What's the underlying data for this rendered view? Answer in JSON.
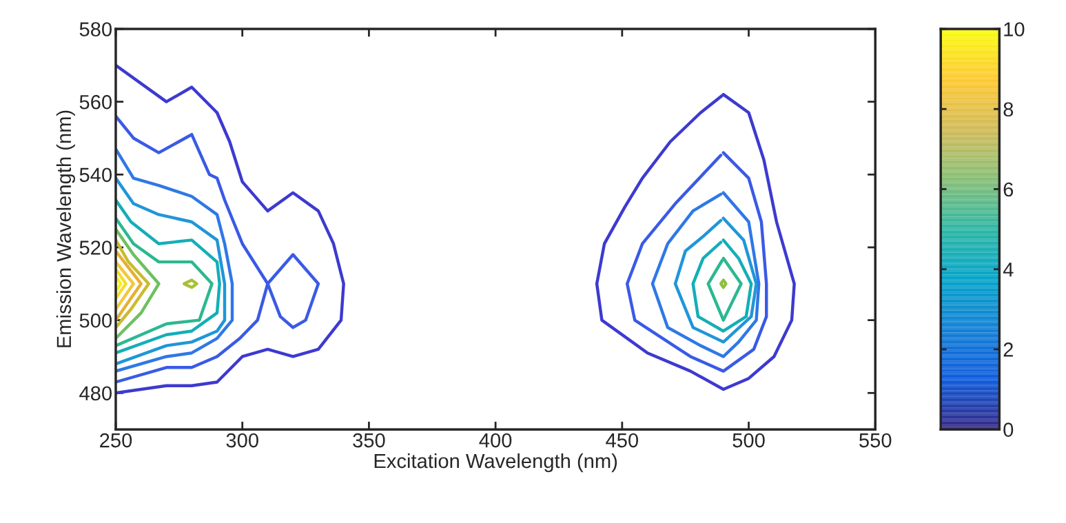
{
  "chart_data": {
    "type": "line",
    "xlabel": "Excitation Wavelength (nm)",
    "ylabel": "Emission Wavelength (nm)",
    "xlim": [
      250,
      550
    ],
    "xticks": [
      250,
      300,
      350,
      400,
      450,
      500,
      550
    ],
    "ylim": [
      470,
      580
    ],
    "yticks": [
      480,
      500,
      520,
      540,
      560,
      580
    ],
    "clim": [
      0,
      10
    ],
    "cticks": [
      0,
      2,
      4,
      6,
      8,
      10
    ],
    "grid": false,
    "legend": false,
    "series": [
      {
        "color": "#3d3ad0",
        "x": [
          250,
          270,
          280,
          290,
          295,
          300,
          310,
          320,
          330,
          336,
          340,
          339,
          330,
          320,
          310,
          300,
          290,
          280,
          270,
          250
        ],
        "values": [
          570,
          560,
          564,
          557,
          549,
          538,
          530,
          535,
          530,
          521,
          510,
          500,
          492,
          490,
          492,
          490,
          483,
          482,
          482,
          480
        ]
      },
      {
        "color": "#3a5ae6",
        "x": [
          250,
          257,
          267,
          280,
          287,
          290,
          293,
          300,
          310,
          315,
          320,
          325,
          330,
          320,
          310,
          306,
          299,
          290,
          280,
          270,
          250
        ],
        "values": [
          556,
          550,
          546,
          551,
          540,
          539,
          533,
          521,
          510,
          501,
          498,
          500,
          510,
          518,
          510,
          500,
          495,
          490,
          487,
          487,
          483
        ]
      },
      {
        "color": "#2f78e6",
        "x": [
          250,
          257,
          267,
          280,
          290,
          293,
          296,
          296,
          290,
          280,
          270,
          250
        ],
        "values": [
          547,
          539,
          537,
          534,
          529,
          521,
          510,
          500,
          495,
          491,
          490,
          486
        ]
      },
      {
        "color": "#2096d8",
        "x": [
          250,
          257,
          267,
          280,
          290,
          293,
          293,
          290,
          280,
          270,
          250
        ],
        "values": [
          539,
          532,
          529,
          527,
          522,
          510,
          500,
          497,
          494,
          493,
          488
        ]
      },
      {
        "color": "#14aeb8",
        "x": [
          250,
          256,
          267,
          280,
          290,
          291,
          290,
          280,
          270,
          250
        ],
        "values": [
          533,
          527,
          521,
          522,
          516,
          510,
          502,
          497,
          496,
          491
        ]
      },
      {
        "color": "#2cb890",
        "x": [
          250,
          257,
          267,
          280,
          288,
          283,
          270,
          250
        ],
        "values": [
          528,
          521,
          516,
          516,
          510,
          500,
          499,
          493
        ]
      },
      {
        "color": "#6ec060",
        "x": [
          250,
          257,
          267,
          260,
          250
        ],
        "values": [
          525,
          518,
          510,
          502,
          495
        ]
      },
      {
        "color": "#a8c038",
        "x": [
          277,
          280,
          282,
          280,
          277.5
        ],
        "values": [
          510,
          511,
          510,
          509,
          509.8
        ]
      },
      {
        "color": "#c8bc30",
        "x": [
          250,
          255,
          263,
          256,
          250
        ],
        "values": [
          522,
          516,
          510,
          503,
          498
        ]
      },
      {
        "color": "#e6b030",
        "x": [
          250,
          260,
          250
        ],
        "values": [
          519,
          510,
          500
        ]
      },
      {
        "color": "#f2c83a",
        "x": [
          250,
          257,
          250
        ],
        "values": [
          516,
          510,
          503
        ]
      },
      {
        "color": "#f5dc28",
        "x": [
          250,
          254,
          250
        ],
        "values": [
          514,
          510,
          506
        ]
      },
      {
        "color": "#f8f020",
        "x": [
          250,
          252,
          250
        ],
        "values": [
          512,
          510,
          508
        ]
      },
      {
        "color": "#3d3ad0",
        "x": [
          490,
          500,
          506,
          511,
          518,
          517,
          510,
          500,
          490,
          477,
          460,
          442,
          440,
          443,
          451,
          458,
          469,
          481,
          489.5
        ],
        "values": [
          562,
          557,
          544,
          527,
          510,
          500,
          490,
          484,
          481,
          486,
          491,
          500,
          510,
          521,
          531,
          539,
          549,
          557,
          561.7
        ]
      },
      {
        "color": "#3a5ae6",
        "x": [
          490,
          500,
          505,
          507,
          507,
          502,
          490,
          477,
          455,
          452,
          458,
          471,
          489
        ],
        "values": [
          546,
          539,
          527,
          510,
          501,
          492,
          486,
          490,
          500,
          510,
          521,
          532,
          545.3
        ]
      },
      {
        "color": "#2f78e6",
        "x": [
          490,
          500,
          504,
          503,
          496,
          490,
          481,
          468,
          462,
          468,
          478,
          489
        ],
        "values": [
          535,
          527,
          510,
          500,
          494,
          490,
          493,
          498,
          510,
          521,
          530,
          534.6
        ]
      },
      {
        "color": "#2096d8",
        "x": [
          490,
          498,
          503,
          501,
          490,
          478,
          471,
          475,
          482,
          489
        ],
        "values": [
          528,
          522,
          510,
          501,
          494,
          498,
          510,
          519,
          523,
          527.4
        ]
      },
      {
        "color": "#14aeb8",
        "x": [
          490,
          496,
          501,
          499,
          490,
          480,
          478,
          482,
          489
        ],
        "values": [
          522,
          517,
          510,
          501,
          497,
          501,
          510,
          517,
          521.4
        ]
      },
      {
        "color": "#2cb890",
        "x": [
          490,
          497,
          490,
          484,
          489.5
        ],
        "values": [
          517,
          510,
          500,
          510,
          516.4
        ]
      },
      {
        "color": "#8cc040",
        "x": [
          490,
          491,
          490,
          489,
          489.7
        ],
        "values": [
          511,
          510,
          509,
          510,
          510.7
        ]
      }
    ]
  }
}
